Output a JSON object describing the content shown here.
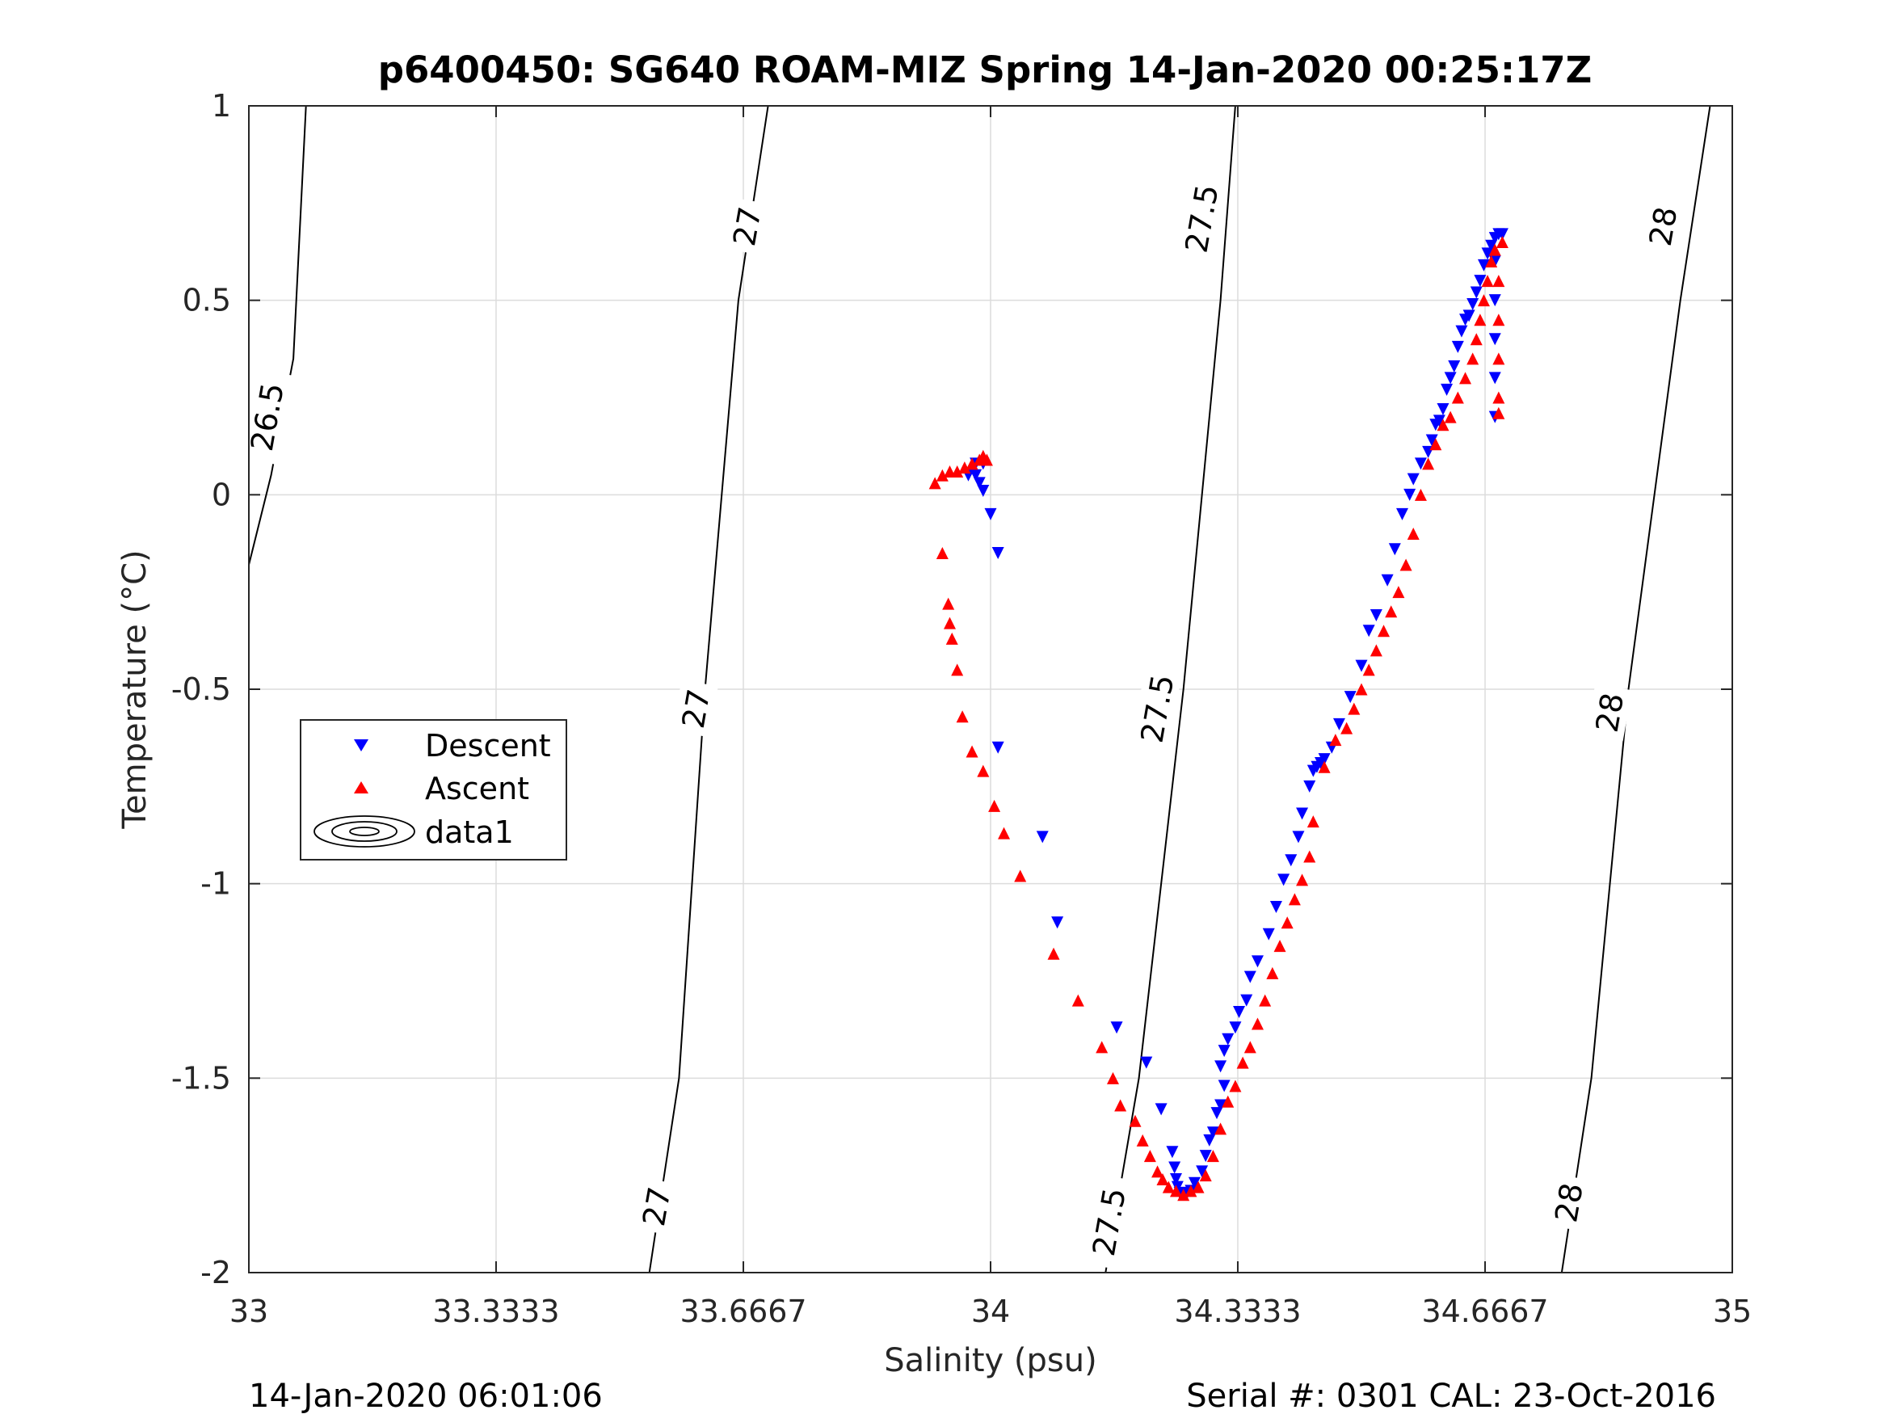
{
  "chart_data": {
    "type": "scatter",
    "title": "p6400450: SG640 ROAM-MIZ Spring 14-Jan-2020 00:25:17Z",
    "xlabel": "Salinity (psu)",
    "ylabel": "Temperature (°C)",
    "xlim": [
      33,
      35
    ],
    "ylim": [
      -2,
      1
    ],
    "x_ticks": [
      33,
      33.3333,
      33.6667,
      34,
      34.3333,
      34.6667,
      35
    ],
    "x_tick_labels": [
      "33",
      "33.3333",
      "33.6667",
      "34",
      "34.3333",
      "34.6667",
      "35"
    ],
    "y_ticks": [
      -2,
      -1.5,
      -1,
      -0.5,
      0,
      0.5,
      1
    ],
    "y_tick_labels": [
      "-2",
      "-1.5",
      "-1",
      "-0.5",
      "0",
      "0.5",
      "1"
    ],
    "grid": true,
    "legend_position": "left-middle",
    "colors": {
      "descent": "#0000ff",
      "ascent": "#ff0000",
      "contour": "#000000"
    },
    "contours": [
      {
        "level": "26.5",
        "points": [
          [
            33.0,
            -0.18
          ],
          [
            33.03,
            0.05
          ],
          [
            33.06,
            0.35
          ],
          [
            33.077,
            1.0
          ]
        ]
      },
      {
        "level": "27",
        "points": [
          [
            33.54,
            -2.0
          ],
          [
            33.58,
            -1.5
          ],
          [
            33.615,
            -0.5
          ],
          [
            33.66,
            0.5
          ],
          [
            33.7,
            1.0
          ]
        ]
      },
      {
        "level": "27.5",
        "points": [
          [
            34.155,
            -2.0
          ],
          [
            34.2,
            -1.5
          ],
          [
            34.26,
            -0.5
          ],
          [
            34.31,
            0.5
          ],
          [
            34.33,
            1.0
          ]
        ]
      },
      {
        "level": "28",
        "points": [
          [
            34.77,
            -2.0
          ],
          [
            34.81,
            -1.5
          ],
          [
            34.86,
            -0.5
          ],
          [
            34.93,
            0.5
          ],
          [
            34.97,
            1.0
          ]
        ]
      }
    ],
    "contour_labels": [
      {
        "text": "26.5",
        "s": 33.025,
        "t": 0.2
      },
      {
        "text": "27",
        "s": 33.55,
        "t": -1.83
      },
      {
        "text": "27",
        "s": 33.603,
        "t": -0.55
      },
      {
        "text": "27",
        "s": 33.672,
        "t": 0.69
      },
      {
        "text": "27.5",
        "s": 34.16,
        "t": -1.87
      },
      {
        "text": "27.5",
        "s": 34.225,
        "t": -0.55
      },
      {
        "text": "27.5",
        "s": 34.285,
        "t": 0.71
      },
      {
        "text": "28",
        "s": 34.78,
        "t": -1.82
      },
      {
        "text": "28",
        "s": 34.835,
        "t": -0.56
      },
      {
        "text": "28",
        "s": 34.907,
        "t": 0.69
      }
    ],
    "series": [
      {
        "name": "Descent",
        "marker": "triangle-down",
        "points": [
          [
            33.97,
            0.05
          ],
          [
            33.98,
            0.05
          ],
          [
            33.985,
            0.03
          ],
          [
            33.99,
            0.01
          ],
          [
            34.0,
            -0.05
          ],
          [
            34.01,
            -0.15
          ],
          [
            33.98,
            0.08
          ],
          [
            33.99,
            0.08
          ],
          [
            34.01,
            -0.65
          ],
          [
            34.07,
            -0.88
          ],
          [
            34.09,
            -1.1
          ],
          [
            34.17,
            -1.37
          ],
          [
            34.21,
            -1.46
          ],
          [
            34.23,
            -1.58
          ],
          [
            34.245,
            -1.69
          ],
          [
            34.248,
            -1.73
          ],
          [
            34.25,
            -1.76
          ],
          [
            34.252,
            -1.78
          ],
          [
            34.255,
            -1.795
          ],
          [
            34.26,
            -1.8
          ],
          [
            34.265,
            -1.795
          ],
          [
            34.27,
            -1.79
          ],
          [
            34.275,
            -1.77
          ],
          [
            34.285,
            -1.74
          ],
          [
            34.29,
            -1.7
          ],
          [
            34.295,
            -1.66
          ],
          [
            34.3,
            -1.64
          ],
          [
            34.305,
            -1.59
          ],
          [
            34.31,
            -1.57
          ],
          [
            34.315,
            -1.52
          ],
          [
            34.31,
            -1.47
          ],
          [
            34.315,
            -1.43
          ],
          [
            34.32,
            -1.4
          ],
          [
            34.33,
            -1.37
          ],
          [
            34.335,
            -1.33
          ],
          [
            34.345,
            -1.3
          ],
          [
            34.35,
            -1.24
          ],
          [
            34.36,
            -1.2
          ],
          [
            34.375,
            -1.13
          ],
          [
            34.385,
            -1.06
          ],
          [
            34.395,
            -0.99
          ],
          [
            34.405,
            -0.94
          ],
          [
            34.415,
            -0.88
          ],
          [
            34.42,
            -0.82
          ],
          [
            34.43,
            -0.75
          ],
          [
            34.435,
            -0.71
          ],
          [
            34.44,
            -0.7
          ],
          [
            34.445,
            -0.69
          ],
          [
            34.45,
            -0.68
          ],
          [
            34.46,
            -0.65
          ],
          [
            34.47,
            -0.59
          ],
          [
            34.485,
            -0.52
          ],
          [
            34.5,
            -0.44
          ],
          [
            34.51,
            -0.35
          ],
          [
            34.52,
            -0.31
          ],
          [
            34.535,
            -0.22
          ],
          [
            34.545,
            -0.14
          ],
          [
            34.555,
            -0.05
          ],
          [
            34.565,
            0.0
          ],
          [
            34.57,
            0.04
          ],
          [
            34.58,
            0.08
          ],
          [
            34.59,
            0.11
          ],
          [
            34.595,
            0.14
          ],
          [
            34.6,
            0.18
          ],
          [
            34.605,
            0.19
          ],
          [
            34.61,
            0.22
          ],
          [
            34.615,
            0.27
          ],
          [
            34.62,
            0.3
          ],
          [
            34.625,
            0.33
          ],
          [
            34.63,
            0.38
          ],
          [
            34.635,
            0.42
          ],
          [
            34.64,
            0.45
          ],
          [
            34.645,
            0.46
          ],
          [
            34.65,
            0.49
          ],
          [
            34.655,
            0.52
          ],
          [
            34.66,
            0.55
          ],
          [
            34.665,
            0.59
          ],
          [
            34.67,
            0.62
          ],
          [
            34.675,
            0.64
          ],
          [
            34.68,
            0.66
          ],
          [
            34.685,
            0.67
          ],
          [
            34.69,
            0.67
          ],
          [
            34.68,
            0.6
          ],
          [
            34.68,
            0.5
          ],
          [
            34.68,
            0.4
          ],
          [
            34.68,
            0.3
          ],
          [
            34.68,
            0.2
          ]
        ]
      },
      {
        "name": "Ascent",
        "marker": "triangle-up",
        "points": [
          [
            33.925,
            0.03
          ],
          [
            33.935,
            0.05
          ],
          [
            33.945,
            0.06
          ],
          [
            33.955,
            0.06
          ],
          [
            33.965,
            0.07
          ],
          [
            33.975,
            0.08
          ],
          [
            33.985,
            0.09
          ],
          [
            33.99,
            0.1
          ],
          [
            33.995,
            0.09
          ],
          [
            33.935,
            -0.15
          ],
          [
            33.943,
            -0.28
          ],
          [
            33.945,
            -0.33
          ],
          [
            33.948,
            -0.37
          ],
          [
            33.955,
            -0.45
          ],
          [
            33.962,
            -0.57
          ],
          [
            33.975,
            -0.66
          ],
          [
            33.99,
            -0.71
          ],
          [
            34.005,
            -0.8
          ],
          [
            34.018,
            -0.87
          ],
          [
            34.04,
            -0.98
          ],
          [
            34.085,
            -1.18
          ],
          [
            34.118,
            -1.3
          ],
          [
            34.15,
            -1.42
          ],
          [
            34.165,
            -1.5
          ],
          [
            34.175,
            -1.57
          ],
          [
            34.195,
            -1.61
          ],
          [
            34.205,
            -1.66
          ],
          [
            34.215,
            -1.7
          ],
          [
            34.225,
            -1.74
          ],
          [
            34.232,
            -1.76
          ],
          [
            34.24,
            -1.78
          ],
          [
            34.25,
            -1.79
          ],
          [
            34.26,
            -1.8
          ],
          [
            34.27,
            -1.79
          ],
          [
            34.28,
            -1.78
          ],
          [
            34.29,
            -1.75
          ],
          [
            34.3,
            -1.7
          ],
          [
            34.31,
            -1.63
          ],
          [
            34.32,
            -1.56
          ],
          [
            34.33,
            -1.52
          ],
          [
            34.34,
            -1.46
          ],
          [
            34.35,
            -1.42
          ],
          [
            34.36,
            -1.36
          ],
          [
            34.37,
            -1.3
          ],
          [
            34.38,
            -1.23
          ],
          [
            34.39,
            -1.16
          ],
          [
            34.4,
            -1.1
          ],
          [
            34.41,
            -1.04
          ],
          [
            34.42,
            -0.99
          ],
          [
            34.43,
            -0.93
          ],
          [
            34.435,
            -0.84
          ],
          [
            34.45,
            -0.7
          ],
          [
            34.465,
            -0.63
          ],
          [
            34.48,
            -0.6
          ],
          [
            34.49,
            -0.55
          ],
          [
            34.5,
            -0.5
          ],
          [
            34.51,
            -0.45
          ],
          [
            34.52,
            -0.4
          ],
          [
            34.53,
            -0.35
          ],
          [
            34.54,
            -0.3
          ],
          [
            34.55,
            -0.25
          ],
          [
            34.56,
            -0.18
          ],
          [
            34.57,
            -0.1
          ],
          [
            34.58,
            0.0
          ],
          [
            34.59,
            0.08
          ],
          [
            34.6,
            0.13
          ],
          [
            34.61,
            0.18
          ],
          [
            34.62,
            0.2
          ],
          [
            34.63,
            0.25
          ],
          [
            34.64,
            0.3
          ],
          [
            34.65,
            0.35
          ],
          [
            34.655,
            0.4
          ],
          [
            34.66,
            0.45
          ],
          [
            34.665,
            0.5
          ],
          [
            34.67,
            0.55
          ],
          [
            34.675,
            0.6
          ],
          [
            34.68,
            0.63
          ],
          [
            34.69,
            0.65
          ],
          [
            34.685,
            0.55
          ],
          [
            34.685,
            0.45
          ],
          [
            34.685,
            0.35
          ],
          [
            34.685,
            0.25
          ],
          [
            34.685,
            0.21
          ]
        ]
      },
      {
        "name": "data1",
        "marker": "contour"
      }
    ]
  },
  "footer": {
    "left": "14-Jan-2020 06:01:06",
    "right": "Serial #: 0301  CAL: 23-Oct-2016"
  }
}
